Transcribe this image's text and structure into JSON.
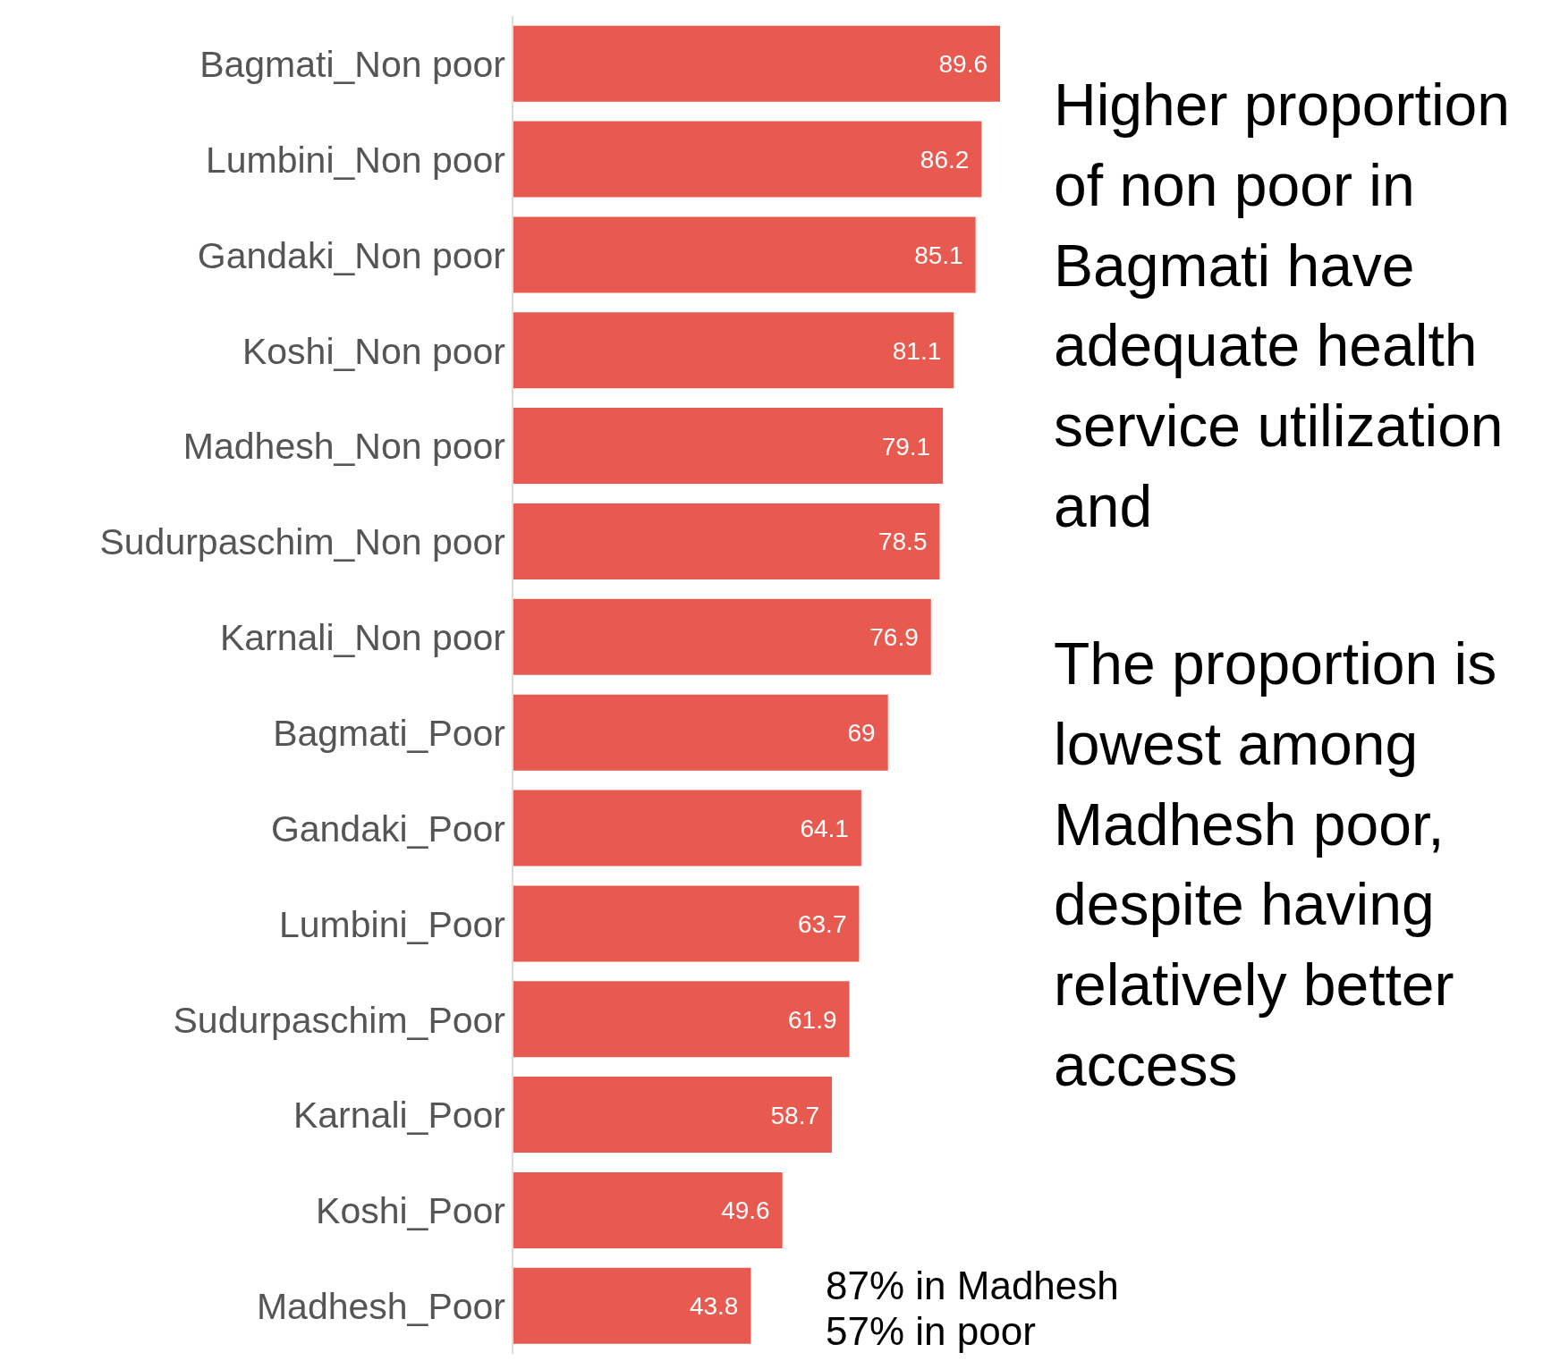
{
  "chart_data": {
    "type": "bar",
    "orientation": "horizontal",
    "categories": [
      "Bagmati_Non poor",
      "Lumbini_Non poor",
      "Gandaki_Non poor",
      "Koshi_Non poor",
      "Madhesh_Non poor",
      "Sudurpaschim_Non poor",
      "Karnali_Non poor",
      "Bagmati_Poor",
      "Gandaki_Poor",
      "Lumbini_Poor",
      "Sudurpaschim_Poor",
      "Karnali_Poor",
      "Koshi_Poor",
      "Madhesh_Poor"
    ],
    "values": [
      89.6,
      86.2,
      85.1,
      81.1,
      79.1,
      78.5,
      76.9,
      69,
      64.1,
      63.7,
      61.9,
      58.7,
      49.6,
      43.8
    ],
    "color": "#e85a4f",
    "data_labels": true,
    "annotations": [
      "Higher proportion of non poor in Bagmati have adequate health service utilization and",
      "The proportion is lowest among Madhesh poor, despite having relatively better access",
      "87% in Madhesh\n57% in poor"
    ]
  }
}
